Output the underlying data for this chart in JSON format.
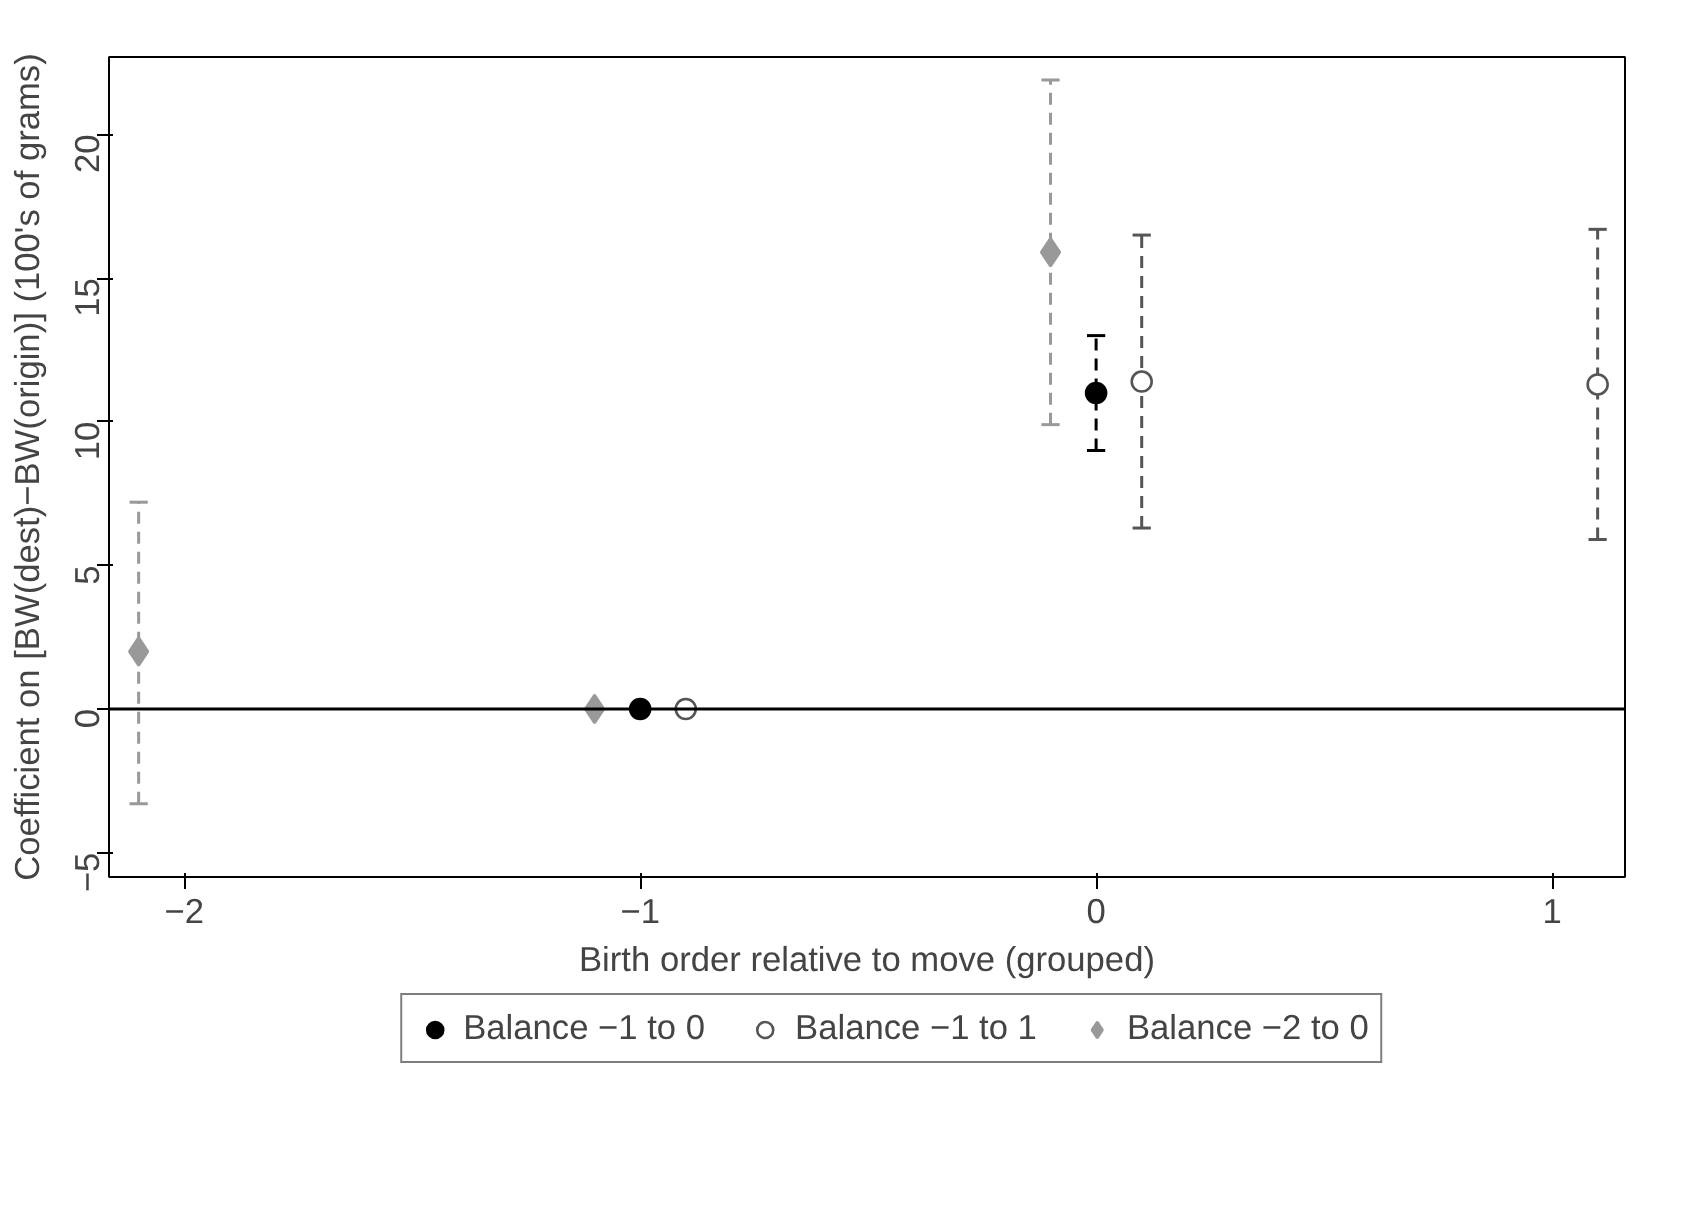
{
  "chart_data": {
    "type": "scatter",
    "xlabel": "Birth order relative to move (grouped)",
    "ylabel": "Coefficient on [BW(dest)−BW(origin)] (100's of grams)",
    "xlim": [
      -2.165,
      1.16
    ],
    "ylim": [
      -5.85,
      22.7
    ],
    "xticks": [
      {
        "value": -2,
        "label": "−2"
      },
      {
        "value": -1,
        "label": "−1"
      },
      0,
      1
    ],
    "yticks": [
      {
        "value": -5,
        "label": "−5"
      },
      0,
      5,
      10,
      15,
      20
    ],
    "grid": false,
    "legend": "bottom",
    "line_style": "dashed",
    "ref_lines": [
      {
        "axis": "y",
        "value": 0,
        "color": "#000000",
        "line_style": "solid"
      }
    ],
    "series": [
      {
        "name": "Balance −1 to 0",
        "color": "#000000",
        "marker": "circle",
        "x": [
          -1,
          0
        ],
        "values": [
          0,
          11
        ],
        "errors": [
          null,
          [
            9,
            13
          ]
        ]
      },
      {
        "name": "Balance −1 to 1",
        "color": "#555555",
        "marker": "circle_open",
        "x": [
          -0.9,
          0.1,
          1.1
        ],
        "values": [
          0,
          11.4,
          11.3
        ],
        "errors": [
          null,
          [
            6.3,
            16.5
          ],
          [
            5.9,
            16.7
          ]
        ]
      },
      {
        "name": "Balance −2 to 0",
        "color": "#999999",
        "marker": "diamond",
        "x": [
          -2.1,
          -1.1,
          -0.1
        ],
        "values": [
          2,
          0,
          15.9
        ],
        "errors": [
          [
            -3.3,
            7.2
          ],
          null,
          [
            9.9,
            21.9
          ]
        ]
      }
    ]
  }
}
